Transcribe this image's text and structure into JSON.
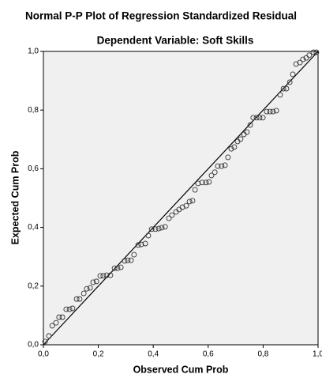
{
  "chart_data": {
    "type": "scatter",
    "title": "Normal P-P Plot of Regression Standardized Residual",
    "subtitle": "Dependent Variable: Soft Skills",
    "x_label": "Observed Cum Prob",
    "y_label": "Expected Cum Prob",
    "xlim": [
      0,
      1
    ],
    "ylim": [
      0,
      1
    ],
    "xticks": [
      {
        "value": 0,
        "label": "0,0"
      },
      {
        "value": 0.2,
        "label": "0,2"
      },
      {
        "value": 0.4,
        "label": "0,4"
      },
      {
        "value": 0.6,
        "label": "0,6"
      },
      {
        "value": 0.8,
        "label": "0,8"
      },
      {
        "value": 1,
        "label": "1,0"
      }
    ],
    "yticks": [
      {
        "value": 0,
        "label": "0,0"
      },
      {
        "value": 0.2,
        "label": "0,2"
      },
      {
        "value": 0.4,
        "label": "0,4"
      },
      {
        "value": 0.6,
        "label": "0,6"
      },
      {
        "value": 0.8,
        "label": "0,8"
      },
      {
        "value": 1,
        "label": "1,0"
      }
    ],
    "grid": false,
    "x": [
      0.006,
      0.02,
      0.032,
      0.046,
      0.057,
      0.069,
      0.083,
      0.095,
      0.106,
      0.121,
      0.132,
      0.147,
      0.158,
      0.17,
      0.181,
      0.193,
      0.207,
      0.218,
      0.23,
      0.244,
      0.259,
      0.27,
      0.282,
      0.296,
      0.307,
      0.319,
      0.33,
      0.345,
      0.356,
      0.371,
      0.382,
      0.394,
      0.408,
      0.42,
      0.431,
      0.443,
      0.457,
      0.468,
      0.483,
      0.494,
      0.506,
      0.52,
      0.532,
      0.543,
      0.552,
      0.563,
      0.578,
      0.592,
      0.603,
      0.612,
      0.624,
      0.635,
      0.649,
      0.661,
      0.672,
      0.684,
      0.695,
      0.707,
      0.718,
      0.73,
      0.741,
      0.753,
      0.764,
      0.776,
      0.787,
      0.799,
      0.813,
      0.825,
      0.836,
      0.848,
      0.862,
      0.874,
      0.885,
      0.897,
      0.908,
      0.92,
      0.934,
      0.945,
      0.957,
      0.968,
      0.983,
      0.994
    ],
    "values": [
      0.011,
      0.03,
      0.065,
      0.075,
      0.094,
      0.094,
      0.121,
      0.121,
      0.124,
      0.156,
      0.156,
      0.175,
      0.191,
      0.194,
      0.213,
      0.216,
      0.235,
      0.235,
      0.237,
      0.237,
      0.261,
      0.261,
      0.264,
      0.286,
      0.288,
      0.288,
      0.307,
      0.34,
      0.342,
      0.345,
      0.372,
      0.394,
      0.394,
      0.396,
      0.399,
      0.402,
      0.431,
      0.442,
      0.453,
      0.461,
      0.469,
      0.474,
      0.488,
      0.491,
      0.528,
      0.55,
      0.553,
      0.553,
      0.555,
      0.577,
      0.588,
      0.609,
      0.609,
      0.612,
      0.639,
      0.668,
      0.674,
      0.693,
      0.701,
      0.717,
      0.725,
      0.749,
      0.774,
      0.774,
      0.774,
      0.774,
      0.795,
      0.795,
      0.795,
      0.798,
      0.852,
      0.873,
      0.873,
      0.895,
      0.922,
      0.957,
      0.962,
      0.973,
      0.978,
      0.987,
      0.997,
      0.997
    ]
  }
}
